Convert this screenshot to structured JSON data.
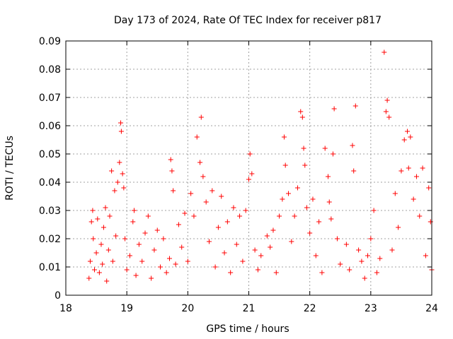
{
  "chart_data": {
    "type": "scatter",
    "title": "Day 173 of 2024, Rate Of TEC Index for receiver p817",
    "xlabel": "GPS time / hours",
    "ylabel": "ROTI / TECUs",
    "xlim": [
      18,
      24
    ],
    "ylim": [
      0,
      0.09
    ],
    "xticks": [
      18,
      19,
      20,
      21,
      22,
      23,
      24
    ],
    "xtick_labels": [
      "18",
      "19",
      "20",
      "21",
      "22",
      "23",
      "24"
    ],
    "yticks": [
      0,
      0.01,
      0.02,
      0.03,
      0.04,
      0.05,
      0.06,
      0.07,
      0.08,
      0.09
    ],
    "ytick_labels": [
      "0",
      "0.01",
      "0.02",
      "0.03",
      "0.04",
      "0.05",
      "0.06",
      "0.07",
      "0.08",
      "0.09"
    ],
    "grid": true,
    "marker": "+",
    "color": "#ff0000",
    "series": [
      {
        "name": "ROTI",
        "points": [
          [
            18.38,
            0.006
          ],
          [
            18.4,
            0.012
          ],
          [
            18.42,
            0.026
          ],
          [
            18.44,
            0.03
          ],
          [
            18.45,
            0.02
          ],
          [
            18.47,
            0.009
          ],
          [
            18.5,
            0.015
          ],
          [
            18.52,
            0.027
          ],
          [
            18.55,
            0.008
          ],
          [
            18.58,
            0.018
          ],
          [
            18.6,
            0.011
          ],
          [
            18.62,
            0.024
          ],
          [
            18.65,
            0.031
          ],
          [
            18.67,
            0.005
          ],
          [
            18.7,
            0.016
          ],
          [
            18.72,
            0.028
          ],
          [
            18.75,
            0.044
          ],
          [
            18.77,
            0.012
          ],
          [
            18.8,
            0.037
          ],
          [
            18.82,
            0.021
          ],
          [
            18.85,
            0.04
          ],
          [
            18.88,
            0.047
          ],
          [
            18.9,
            0.061
          ],
          [
            18.91,
            0.058
          ],
          [
            18.93,
            0.043
          ],
          [
            18.95,
            0.038
          ],
          [
            18.97,
            0.02
          ],
          [
            19.0,
            0.009
          ],
          [
            19.05,
            0.014
          ],
          [
            19.1,
            0.026
          ],
          [
            19.12,
            0.03
          ],
          [
            19.15,
            0.007
          ],
          [
            19.2,
            0.018
          ],
          [
            19.25,
            0.012
          ],
          [
            19.3,
            0.022
          ],
          [
            19.35,
            0.028
          ],
          [
            19.4,
            0.006
          ],
          [
            19.45,
            0.016
          ],
          [
            19.5,
            0.023
          ],
          [
            19.55,
            0.01
          ],
          [
            19.6,
            0.02
          ],
          [
            19.65,
            0.008
          ],
          [
            19.7,
            0.013
          ],
          [
            19.72,
            0.048
          ],
          [
            19.74,
            0.044
          ],
          [
            19.76,
            0.037
          ],
          [
            19.8,
            0.011
          ],
          [
            19.85,
            0.025
          ],
          [
            19.9,
            0.017
          ],
          [
            19.95,
            0.029
          ],
          [
            20.0,
            0.012
          ],
          [
            20.05,
            0.036
          ],
          [
            20.1,
            0.028
          ],
          [
            20.15,
            0.056
          ],
          [
            20.2,
            0.047
          ],
          [
            20.22,
            0.063
          ],
          [
            20.25,
            0.042
          ],
          [
            20.3,
            0.033
          ],
          [
            20.35,
            0.019
          ],
          [
            20.4,
            0.037
          ],
          [
            20.45,
            0.01
          ],
          [
            20.5,
            0.024
          ],
          [
            20.55,
            0.035
          ],
          [
            20.6,
            0.015
          ],
          [
            20.65,
            0.026
          ],
          [
            20.7,
            0.008
          ],
          [
            20.75,
            0.031
          ],
          [
            20.8,
            0.018
          ],
          [
            20.85,
            0.028
          ],
          [
            20.9,
            0.012
          ],
          [
            20.95,
            0.03
          ],
          [
            21.0,
            0.041
          ],
          [
            21.02,
            0.05
          ],
          [
            21.05,
            0.043
          ],
          [
            21.1,
            0.016
          ],
          [
            21.15,
            0.009
          ],
          [
            21.2,
            0.014
          ],
          [
            21.3,
            0.021
          ],
          [
            21.35,
            0.017
          ],
          [
            21.4,
            0.023
          ],
          [
            21.45,
            0.008
          ],
          [
            21.5,
            0.028
          ],
          [
            21.55,
            0.034
          ],
          [
            21.58,
            0.056
          ],
          [
            21.6,
            0.046
          ],
          [
            21.65,
            0.036
          ],
          [
            21.7,
            0.019
          ],
          [
            21.75,
            0.028
          ],
          [
            21.8,
            0.038
          ],
          [
            21.85,
            0.065
          ],
          [
            21.88,
            0.063
          ],
          [
            21.9,
            0.052
          ],
          [
            21.92,
            0.046
          ],
          [
            21.95,
            0.031
          ],
          [
            22.0,
            0.022
          ],
          [
            22.05,
            0.034
          ],
          [
            22.1,
            0.014
          ],
          [
            22.15,
            0.026
          ],
          [
            22.2,
            0.008
          ],
          [
            22.25,
            0.052
          ],
          [
            22.3,
            0.042
          ],
          [
            22.32,
            0.033
          ],
          [
            22.35,
            0.027
          ],
          [
            22.38,
            0.05
          ],
          [
            22.4,
            0.066
          ],
          [
            22.45,
            0.02
          ],
          [
            22.5,
            0.011
          ],
          [
            22.6,
            0.018
          ],
          [
            22.65,
            0.009
          ],
          [
            22.7,
            0.053
          ],
          [
            22.72,
            0.044
          ],
          [
            22.75,
            0.067
          ],
          [
            22.8,
            0.016
          ],
          [
            22.85,
            0.012
          ],
          [
            22.9,
            0.006
          ],
          [
            22.95,
            0.014
          ],
          [
            23.0,
            0.02
          ],
          [
            23.05,
            0.03
          ],
          [
            23.1,
            0.008
          ],
          [
            23.15,
            0.013
          ],
          [
            23.22,
            0.086
          ],
          [
            23.25,
            0.065
          ],
          [
            23.27,
            0.069
          ],
          [
            23.3,
            0.063
          ],
          [
            23.35,
            0.016
          ],
          [
            23.4,
            0.036
          ],
          [
            23.45,
            0.024
          ],
          [
            23.5,
            0.044
          ],
          [
            23.55,
            0.055
          ],
          [
            23.6,
            0.058
          ],
          [
            23.62,
            0.045
          ],
          [
            23.65,
            0.056
          ],
          [
            23.7,
            0.034
          ],
          [
            23.75,
            0.042
          ],
          [
            23.8,
            0.028
          ],
          [
            23.85,
            0.045
          ],
          [
            23.9,
            0.014
          ],
          [
            23.95,
            0.038
          ],
          [
            23.98,
            0.026
          ],
          [
            24.0,
            0.009
          ]
        ]
      }
    ]
  }
}
